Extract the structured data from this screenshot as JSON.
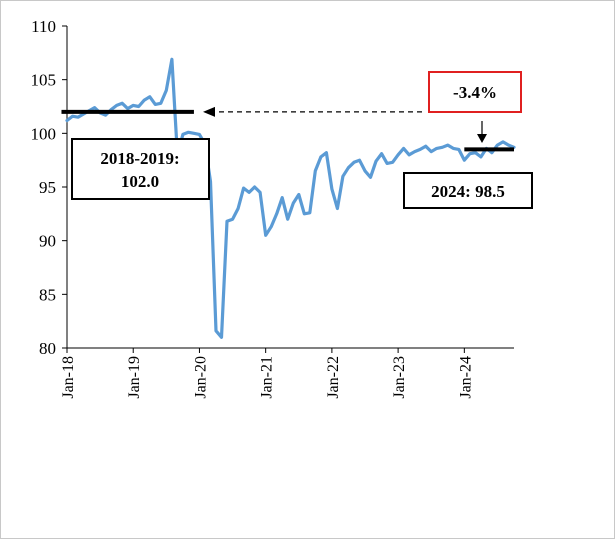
{
  "chart_data": {
    "type": "line",
    "xlabel": "",
    "ylabel": "",
    "ylim": [
      80,
      110
    ],
    "yticks": [
      "80",
      "85",
      "90",
      "95",
      "100",
      "105",
      "110"
    ],
    "xticks": [
      "Jan-18",
      "Jan-19",
      "Jan-20",
      "Jan-21",
      "Jan-22",
      "Jan-23",
      "Jan-24"
    ],
    "x_range": [
      "2018-01",
      "2024-10"
    ],
    "grid": false,
    "line_color": "#5b9bd5",
    "series": [
      {
        "x": [
          "2018-01",
          "2018-02",
          "2018-03",
          "2018-04",
          "2018-05",
          "2018-06",
          "2018-07",
          "2018-08",
          "2018-09",
          "2018-10",
          "2018-11",
          "2018-12",
          "2019-01",
          "2019-02",
          "2019-03",
          "2019-04",
          "2019-05",
          "2019-06",
          "2019-07",
          "2019-08",
          "2019-09",
          "2019-10",
          "2019-11",
          "2019-12",
          "2020-01",
          "2020-02",
          "2020-03",
          "2020-04",
          "2020-05",
          "2020-06",
          "2020-07",
          "2020-08",
          "2020-09",
          "2020-10",
          "2020-11",
          "2020-12",
          "2021-01",
          "2021-02",
          "2021-03",
          "2021-04",
          "2021-05",
          "2021-06",
          "2021-07",
          "2021-08",
          "2021-09",
          "2021-10",
          "2021-11",
          "2021-12",
          "2022-01",
          "2022-02",
          "2022-03",
          "2022-04",
          "2022-05",
          "2022-06",
          "2022-07",
          "2022-08",
          "2022-09",
          "2022-10",
          "2022-11",
          "2022-12",
          "2023-01",
          "2023-02",
          "2023-03",
          "2023-04",
          "2023-05",
          "2023-06",
          "2023-07",
          "2023-08",
          "2023-09",
          "2023-10",
          "2023-11",
          "2023-12",
          "2024-01",
          "2024-02",
          "2024-03",
          "2024-04",
          "2024-05",
          "2024-06",
          "2024-07",
          "2024-08",
          "2024-09",
          "2024-10"
        ],
        "values": [
          101.2,
          101.6,
          101.5,
          101.8,
          102.1,
          102.4,
          101.9,
          101.7,
          102.2,
          102.6,
          102.8,
          102.3,
          102.6,
          102.5,
          103.1,
          103.4,
          102.7,
          102.8,
          104.0,
          106.9,
          98.0,
          99.9,
          100.1,
          100.0,
          99.9,
          99.0,
          95.5,
          81.6,
          81.0,
          91.8,
          92.0,
          93.0,
          94.9,
          94.5,
          95.0,
          94.5,
          90.5,
          91.3,
          92.5,
          94.0,
          92.0,
          93.5,
          94.3,
          92.5,
          92.6,
          96.5,
          97.8,
          98.2,
          94.8,
          93.0,
          96.0,
          96.8,
          97.3,
          97.5,
          96.5,
          95.9,
          97.4,
          98.1,
          97.2,
          97.3,
          98.0,
          98.6,
          98.0,
          98.3,
          98.5,
          98.8,
          98.3,
          98.6,
          98.7,
          98.9,
          98.6,
          98.5,
          97.5,
          98.1,
          98.2,
          97.8,
          98.6,
          98.2,
          98.9,
          99.2,
          98.9,
          98.7
        ]
      }
    ],
    "annotations": {
      "benchmark_2018_2019": {
        "text": "2018-2019:\n102.0",
        "line1": "2018-2019:",
        "line2": "102.0",
        "value": 102.0,
        "x_start": "2017-12",
        "x_end": "2019-12"
      },
      "value_2024": {
        "text": "2024: 98.5",
        "value": 98.5,
        "x_start": "2024-01",
        "x_end": "2024-10"
      },
      "change": {
        "text": "-3.4%",
        "border_color": "#e02020"
      }
    }
  }
}
